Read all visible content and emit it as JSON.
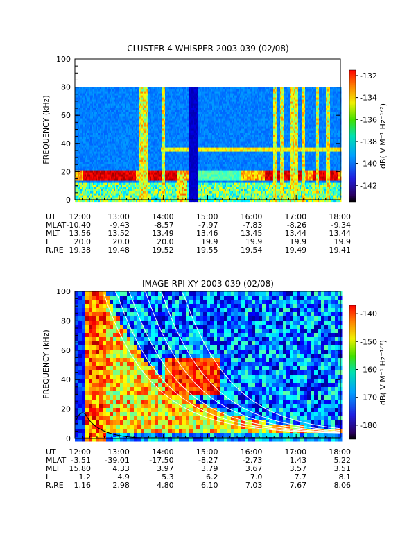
{
  "chart_data": [
    {
      "type": "heatmap",
      "title": "CLUSTER 4 WHISPER 2003 039 (02/08)",
      "ylabel": "FREQUENCY (kHz)",
      "ylim": [
        0,
        100
      ],
      "y_ticks": [
        "0",
        "20",
        "40",
        "60",
        "80",
        "100"
      ],
      "x_ticks": [
        "12:00",
        "13:00",
        "14:00",
        "15:00",
        "16:00",
        "17:00",
        "18:00"
      ],
      "colorbar": {
        "label": "dB( V M⁻¹ Hz⁻¹ᐟ²)",
        "range": [
          -143.5,
          -131.5
        ],
        "ticks": [
          "-132",
          "-134",
          "-136",
          "-138",
          "-140",
          "-142"
        ]
      },
      "ephemeris": {
        "row_labels": [
          "UT",
          "MLAT",
          "MLT",
          "L",
          "R,RE"
        ],
        "columns": [
          [
            "12:00",
            "-10.40",
            "13.56",
            "20.0",
            "19.38"
          ],
          [
            "13:00",
            "-9.43",
            "13.52",
            "20.0",
            "19.48"
          ],
          [
            "14:00",
            "-8.57",
            "13.49",
            "20.0",
            "19.52"
          ],
          [
            "15:00",
            "-7.97",
            "13.46",
            "19.9",
            "19.55"
          ],
          [
            "16:00",
            "-7.83",
            "13.45",
            "19.9",
            "19.54"
          ],
          [
            "17:00",
            "-8.26",
            "13.44",
            "19.9",
            "19.49"
          ],
          [
            "18:00",
            "-9.34",
            "13.44",
            "19.9",
            "19.41"
          ]
        ]
      }
    },
    {
      "type": "heatmap",
      "title": "IMAGE RPI XY 2003 039 (02/08)",
      "ylabel": "FREQUENCY (kHz)",
      "ylim": [
        0,
        100
      ],
      "y_ticks": [
        "0",
        "20",
        "40",
        "60",
        "80",
        "100"
      ],
      "x_ticks": [
        "12:00",
        "13:00",
        "14:00",
        "15:00",
        "16:00",
        "17:00",
        "18:00"
      ],
      "colorbar": {
        "label": "dB( V M⁻¹ Hz⁻¹ᐟ²)",
        "range": [
          -185,
          -137
        ],
        "ticks": [
          "-140",
          "-150",
          "-160",
          "-170",
          "-180"
        ]
      },
      "ephemeris": {
        "row_labels": [
          "UT",
          "MLAT",
          "MLT",
          "L",
          "R,RE"
        ],
        "columns": [
          [
            "12:00",
            "-3.51",
            "15.80",
            "1.2",
            "1.16"
          ],
          [
            "13:00",
            "-39.01",
            "4.33",
            "4.9",
            "2.98"
          ],
          [
            "14:00",
            "-17.50",
            "3.97",
            "5.3",
            "4.80"
          ],
          [
            "15:00",
            "-8.27",
            "3.79",
            "6.2",
            "6.10"
          ],
          [
            "16:00",
            "-2.73",
            "3.67",
            "7.0",
            "7.03"
          ],
          [
            "17:00",
            "1.43",
            "3.57",
            "7.7",
            "7.67"
          ],
          [
            "18:00",
            "5.22",
            "3.51",
            "8.1",
            "8.06"
          ]
        ]
      }
    }
  ]
}
